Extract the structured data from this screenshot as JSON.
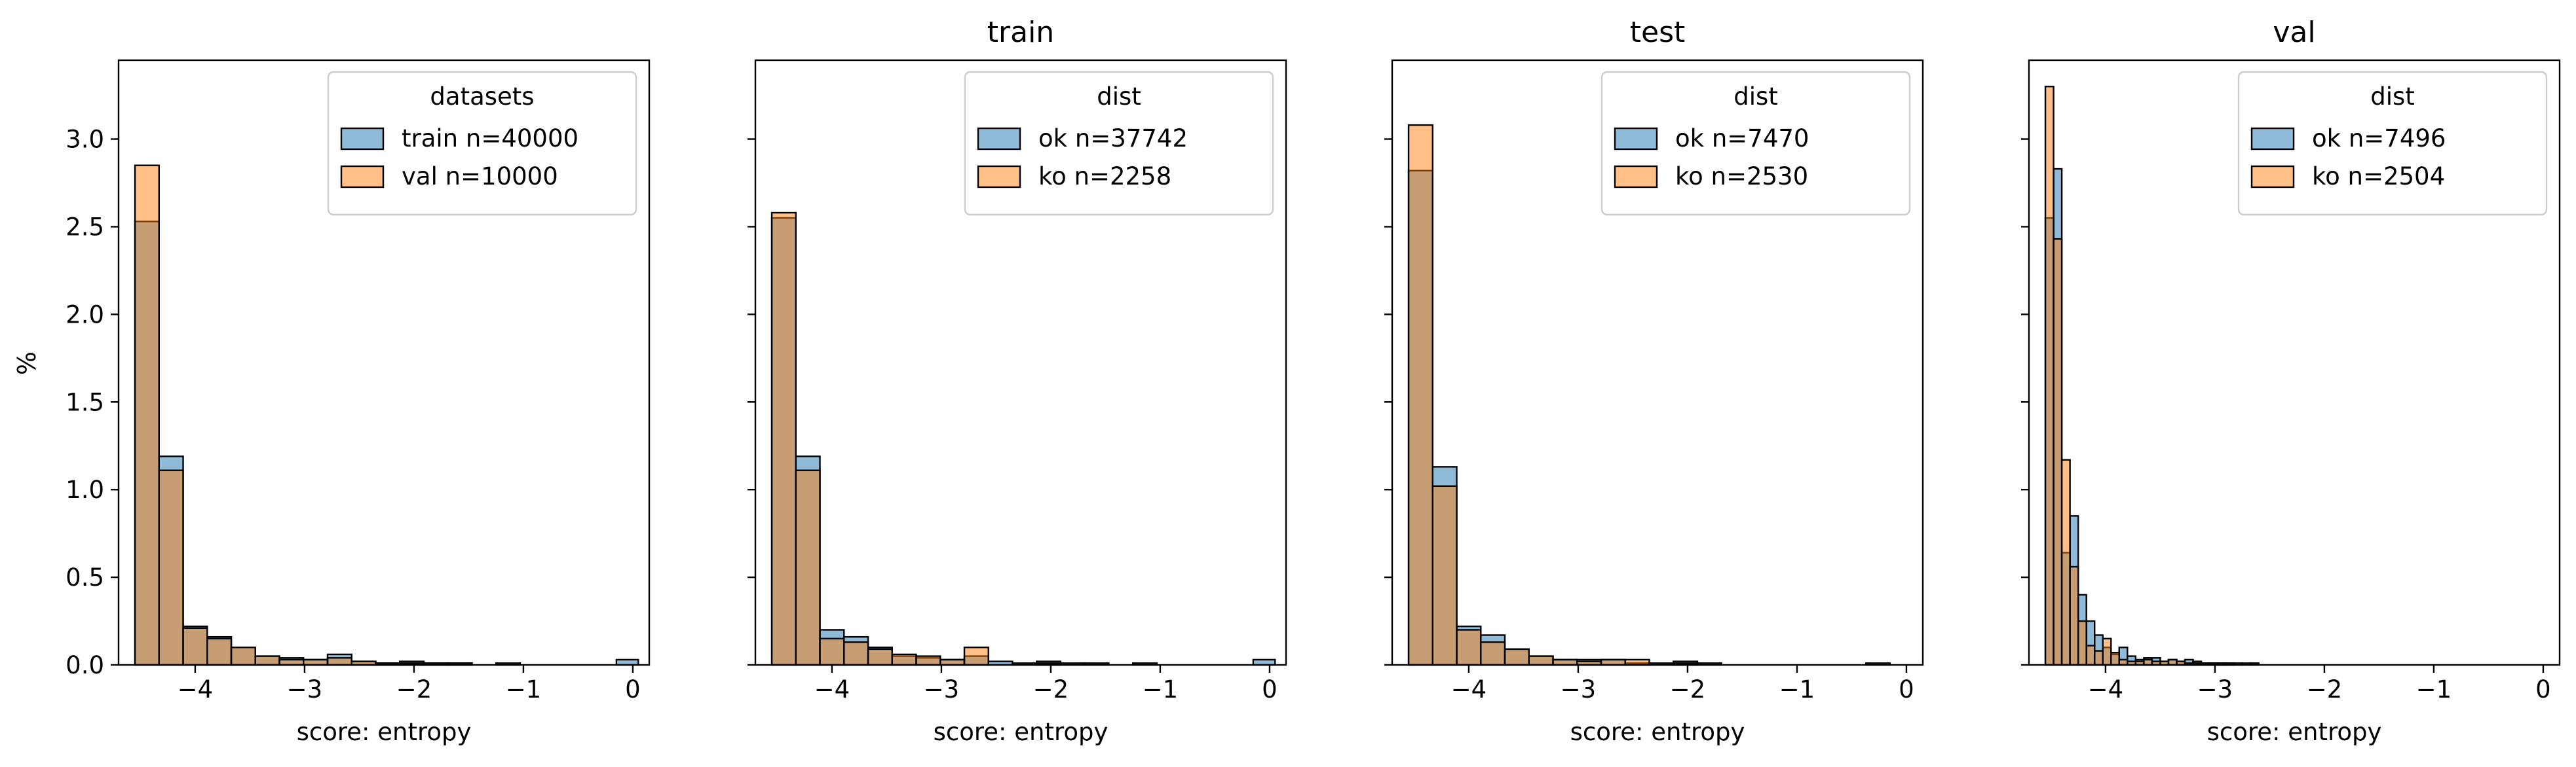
{
  "figure": {
    "shared_ylabel": "%"
  },
  "chart_data": [
    {
      "type": "histogram",
      "title": "",
      "xlabel": "score: entropy",
      "ylabel": "%",
      "xlim": [
        -4.7,
        0.15
      ],
      "ylim": [
        0,
        3.45
      ],
      "xticks": [
        -4,
        -3,
        -2,
        -1,
        0
      ],
      "yticks": [
        0.0,
        0.5,
        1.0,
        1.5,
        2.0,
        2.5,
        3.0
      ],
      "xtick_labels": [
        "−4",
        "−3",
        "−2",
        "−1",
        "0"
      ],
      "ytick_labels": [
        "0.0",
        "0.5",
        "1.0",
        "1.5",
        "2.0",
        "2.5",
        "3.0"
      ],
      "legend": {
        "title": "datasets",
        "position": "upper right"
      },
      "series": [
        {
          "name": "train n=40000",
          "color": "#1f77b4",
          "bin_edges": [
            -4.55,
            -4.33,
            -4.11,
            -3.89,
            -3.67,
            -3.45,
            -3.23,
            -3.01,
            -2.79,
            -2.57,
            -2.35,
            -2.13,
            -1.91,
            -1.69,
            -1.47,
            -1.25,
            -1.03,
            -0.81,
            -0.59,
            -0.37,
            -0.15,
            0.05
          ],
          "values": [
            2.53,
            1.19,
            0.22,
            0.16,
            0.1,
            0.05,
            0.04,
            0.03,
            0.06,
            0.02,
            0.01,
            0.02,
            0.01,
            0.01,
            0.0,
            0.01,
            0.0,
            0.0,
            0.0,
            0.0,
            0.03
          ]
        },
        {
          "name": "val n=10000",
          "color": "#ff7f0e",
          "bin_edges": [
            -4.55,
            -4.33,
            -4.11,
            -3.89,
            -3.67,
            -3.45,
            -3.23,
            -3.01,
            -2.79,
            -2.57,
            -2.35,
            -2.13,
            -1.91,
            -1.69,
            -1.47,
            -1.25,
            -1.03,
            -0.81,
            -0.59,
            -0.37,
            -0.15,
            0.05
          ],
          "values": [
            2.85,
            1.11,
            0.21,
            0.15,
            0.1,
            0.05,
            0.03,
            0.03,
            0.04,
            0.02,
            0.01,
            0.01,
            0.01,
            0.01,
            0.0,
            0.0,
            0.0,
            0.0,
            0.0,
            0.0,
            0.0
          ]
        }
      ]
    },
    {
      "type": "histogram",
      "title": "train",
      "xlabel": "score: entropy",
      "ylabel": "",
      "xlim": [
        -4.7,
        0.15
      ],
      "ylim": [
        0,
        3.45
      ],
      "xticks": [
        -4,
        -3,
        -2,
        -1,
        0
      ],
      "yticks": [
        0.0,
        0.5,
        1.0,
        1.5,
        2.0,
        2.5,
        3.0
      ],
      "xtick_labels": [
        "−4",
        "−3",
        "−2",
        "−1",
        "0"
      ],
      "ytick_labels": [],
      "legend": {
        "title": "dist",
        "position": "upper right"
      },
      "series": [
        {
          "name": "ok n=37742",
          "color": "#1f77b4",
          "bin_edges": [
            -4.55,
            -4.33,
            -4.11,
            -3.89,
            -3.67,
            -3.45,
            -3.23,
            -3.01,
            -2.79,
            -2.57,
            -2.35,
            -2.13,
            -1.91,
            -1.69,
            -1.47,
            -1.25,
            -1.03,
            -0.81,
            -0.59,
            -0.37,
            -0.15,
            0.05
          ],
          "values": [
            2.55,
            1.19,
            0.2,
            0.16,
            0.1,
            0.05,
            0.04,
            0.03,
            0.05,
            0.02,
            0.01,
            0.02,
            0.01,
            0.01,
            0.0,
            0.01,
            0.0,
            0.0,
            0.0,
            0.0,
            0.03
          ]
        },
        {
          "name": "ko n=2258",
          "color": "#ff7f0e",
          "bin_edges": [
            -4.55,
            -4.33,
            -4.11,
            -3.89,
            -3.67,
            -3.45,
            -3.23,
            -3.01,
            -2.79,
            -2.57,
            -2.35,
            -2.13,
            -1.91,
            -1.69,
            -1.47,
            -1.25,
            -1.03,
            -0.81,
            -0.59,
            -0.37,
            -0.15,
            0.05
          ],
          "values": [
            2.58,
            1.11,
            0.15,
            0.13,
            0.09,
            0.06,
            0.05,
            0.03,
            0.1,
            0.0,
            0.0,
            0.01,
            0.0,
            0.0,
            0.0,
            0.0,
            0.0,
            0.0,
            0.0,
            0.0,
            0.0
          ]
        }
      ]
    },
    {
      "type": "histogram",
      "title": "test",
      "xlabel": "score: entropy",
      "ylabel": "",
      "xlim": [
        -4.7,
        0.15
      ],
      "ylim": [
        0,
        3.45
      ],
      "xticks": [
        -4,
        -3,
        -2,
        -1,
        0
      ],
      "yticks": [
        0.0,
        0.5,
        1.0,
        1.5,
        2.0,
        2.5,
        3.0
      ],
      "xtick_labels": [
        "−4",
        "−3",
        "−2",
        "−1",
        "0"
      ],
      "ytick_labels": [],
      "legend": {
        "title": "dist",
        "position": "upper right"
      },
      "series": [
        {
          "name": "ok n=7470",
          "color": "#1f77b4",
          "bin_edges": [
            -4.55,
            -4.33,
            -4.11,
            -3.89,
            -3.67,
            -3.45,
            -3.23,
            -3.01,
            -2.79,
            -2.57,
            -2.35,
            -2.13,
            -1.91,
            -1.69,
            -1.47,
            -1.25,
            -1.03,
            -0.81,
            -0.59,
            -0.37,
            -0.15,
            0.05
          ],
          "values": [
            2.82,
            1.13,
            0.22,
            0.17,
            0.09,
            0.05,
            0.03,
            0.03,
            0.03,
            0.01,
            0.01,
            0.02,
            0.01,
            0.0,
            0.0,
            0.0,
            0.0,
            0.0,
            0.0,
            0.01,
            0.0
          ]
        },
        {
          "name": "ko n=2530",
          "color": "#ff7f0e",
          "bin_edges": [
            -4.55,
            -4.33,
            -4.11,
            -3.89,
            -3.67,
            -3.45,
            -3.23,
            -3.01,
            -2.79,
            -2.57,
            -2.35,
            -2.13,
            -1.91,
            -1.69,
            -1.47,
            -1.25,
            -1.03,
            -0.81,
            -0.59,
            -0.37,
            -0.15,
            0.05
          ],
          "values": [
            3.08,
            1.02,
            0.2,
            0.13,
            0.09,
            0.05,
            0.03,
            0.02,
            0.03,
            0.03,
            0.0,
            0.01,
            0.0,
            0.0,
            0.0,
            0.0,
            0.0,
            0.0,
            0.0,
            0.0,
            0.0
          ]
        }
      ]
    },
    {
      "type": "histogram",
      "title": "val",
      "xlabel": "score: entropy",
      "ylabel": "",
      "xlim": [
        -4.7,
        0.15
      ],
      "ylim": [
        0,
        3.45
      ],
      "xticks": [
        -4,
        -3,
        -2,
        -1,
        0
      ],
      "yticks": [
        0.0,
        0.5,
        1.0,
        1.5,
        2.0,
        2.5,
        3.0
      ],
      "xtick_labels": [
        "−4",
        "−3",
        "−2",
        "−1",
        "0"
      ],
      "ytick_labels": [],
      "legend": {
        "title": "dist",
        "position": "upper right"
      },
      "series": [
        {
          "name": "ok n=7496",
          "color": "#1f77b4",
          "bin_edges": [
            -4.55,
            -4.475,
            -4.4,
            -4.325,
            -4.25,
            -4.175,
            -4.1,
            -4.025,
            -3.95,
            -3.875,
            -3.8,
            -3.725,
            -3.65,
            -3.575,
            -3.5,
            -3.425,
            -3.35,
            -3.275,
            -3.2,
            -3.125,
            -3.05,
            -2.975,
            -2.9,
            -2.825,
            -2.75,
            -2.675,
            -2.6
          ],
          "values": [
            2.55,
            2.83,
            0.64,
            0.85,
            0.4,
            0.25,
            0.17,
            0.1,
            0.06,
            0.1,
            0.05,
            0.03,
            0.04,
            0.04,
            0.02,
            0.03,
            0.02,
            0.03,
            0.02,
            0.01,
            0.01,
            0.01,
            0.01,
            0.01,
            0.01,
            0.01
          ]
        },
        {
          "name": "ko n=2504",
          "color": "#ff7f0e",
          "bin_edges": [
            -4.55,
            -4.475,
            -4.4,
            -4.325,
            -4.25,
            -4.175,
            -4.1,
            -4.025,
            -3.95,
            -3.875,
            -3.8,
            -3.725,
            -3.65,
            -3.575,
            -3.5,
            -3.425,
            -3.35,
            -3.275,
            -3.2,
            -3.125,
            -3.05,
            -2.975,
            -2.9,
            -2.825,
            -2.75,
            -2.675,
            -2.6
          ],
          "values": [
            3.3,
            2.43,
            1.17,
            0.56,
            0.25,
            0.11,
            0.08,
            0.15,
            0.07,
            0.03,
            0.02,
            0.02,
            0.03,
            0.02,
            0.02,
            0.03,
            0.02,
            0.01,
            0.01,
            0.01,
            0.01,
            0.01,
            0.01,
            0.0,
            0.0,
            0.0
          ]
        }
      ]
    }
  ]
}
